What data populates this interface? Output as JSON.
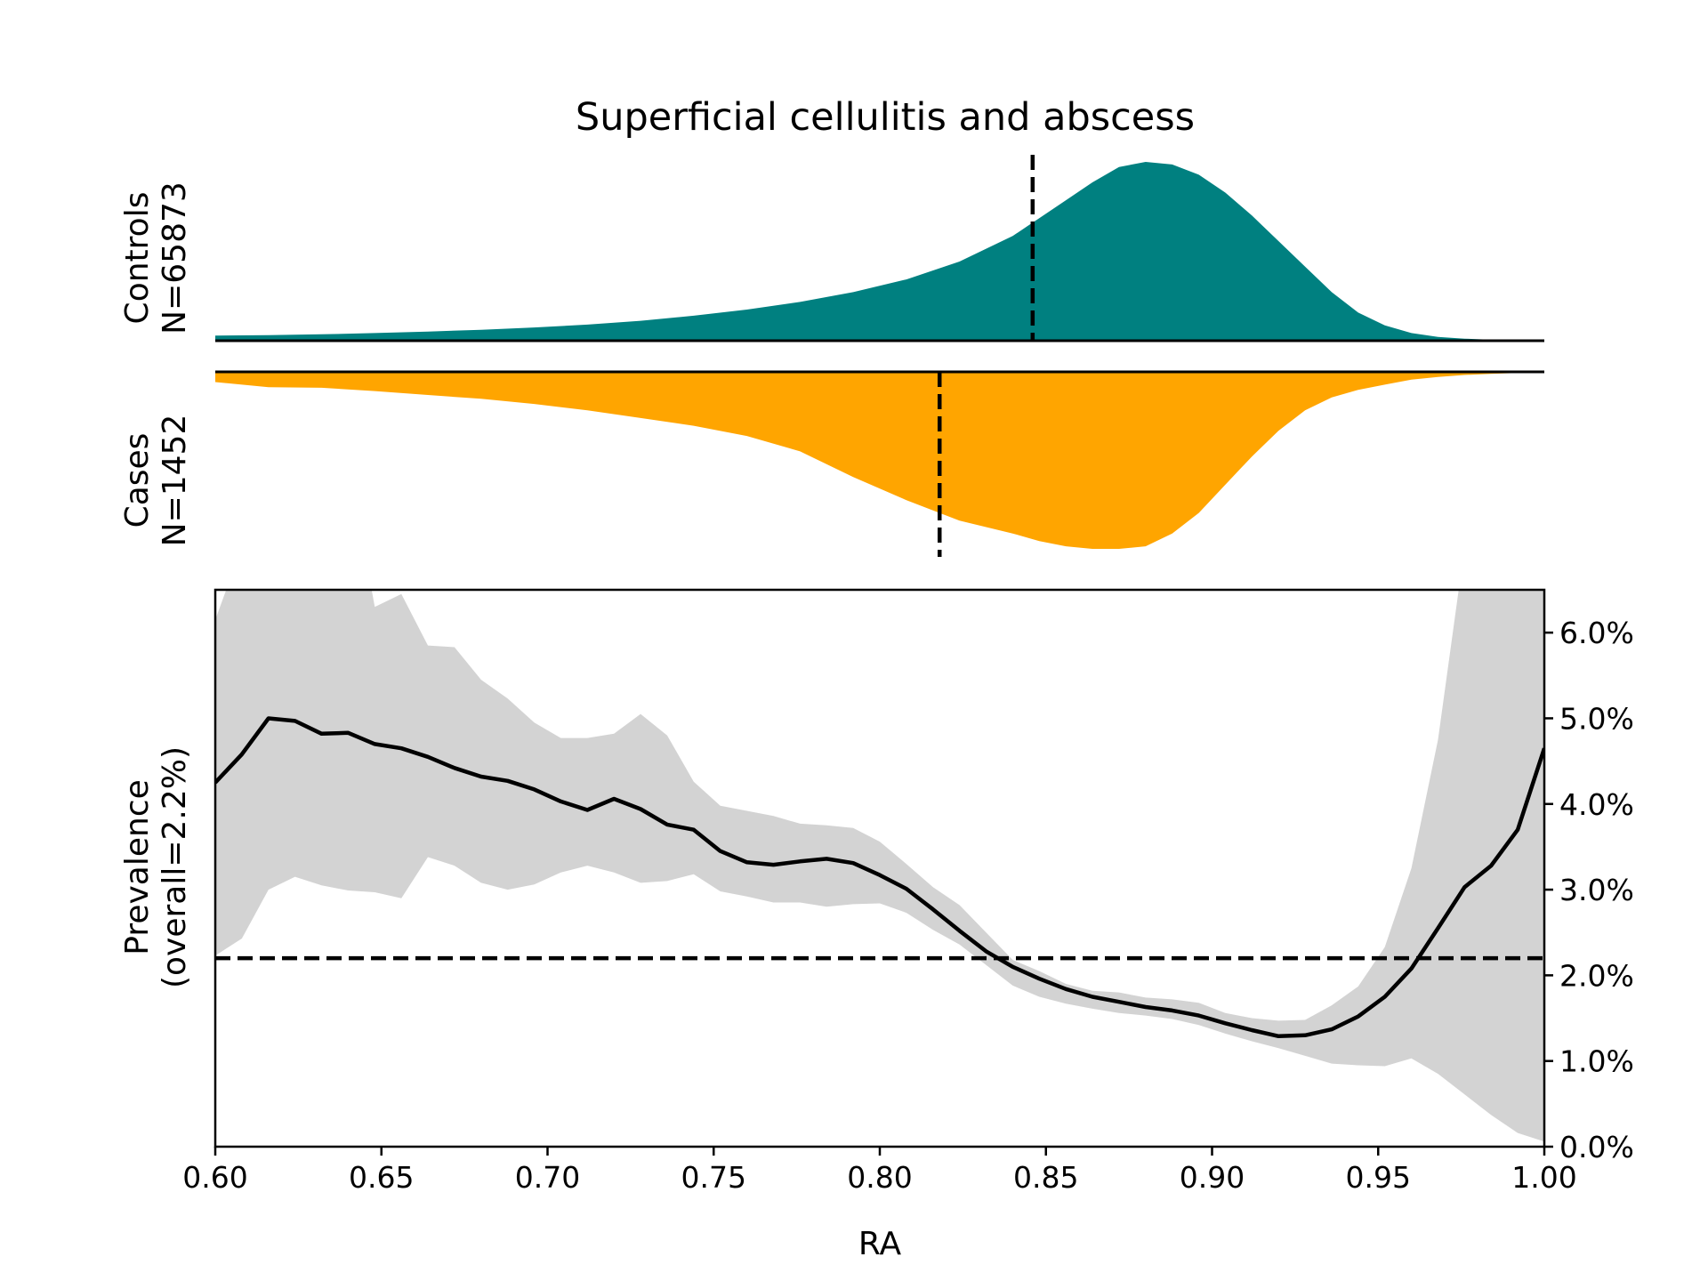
{
  "chart_data": {
    "type": "area",
    "title": "Superficial cellulitis and abscess",
    "x_range": [
      0.6,
      1.0
    ],
    "x_ticks": [
      "0.60",
      "0.65",
      "0.70",
      "0.75",
      "0.80",
      "0.85",
      "0.90",
      "0.95",
      "1.00"
    ],
    "xlabel": "RA",
    "controls": {
      "label_line1": "Controls",
      "label_line2": "N=65873",
      "color": "#008080",
      "median": 0.846,
      "x": [
        0.6,
        0.616,
        0.632,
        0.648,
        0.664,
        0.68,
        0.696,
        0.712,
        0.728,
        0.744,
        0.76,
        0.776,
        0.792,
        0.808,
        0.824,
        0.84,
        0.848,
        0.856,
        0.864,
        0.872,
        0.88,
        0.888,
        0.896,
        0.904,
        0.912,
        0.92,
        0.928,
        0.936,
        0.944,
        0.952,
        0.96,
        0.968,
        0.976,
        0.984,
        0.992,
        1.0
      ],
      "density": [
        0.02,
        0.022,
        0.025,
        0.03,
        0.036,
        0.043,
        0.052,
        0.063,
        0.078,
        0.098,
        0.122,
        0.152,
        0.19,
        0.24,
        0.31,
        0.41,
        0.48,
        0.55,
        0.62,
        0.68,
        0.7,
        0.69,
        0.65,
        0.58,
        0.49,
        0.39,
        0.29,
        0.19,
        0.11,
        0.06,
        0.03,
        0.015,
        0.008,
        0.004,
        0.002,
        0.001
      ]
    },
    "cases": {
      "label_line1": "Cases",
      "label_line2": "N=1452",
      "color": "#FFA500",
      "median": 0.818,
      "x": [
        0.6,
        0.616,
        0.632,
        0.648,
        0.664,
        0.68,
        0.696,
        0.712,
        0.728,
        0.744,
        0.76,
        0.776,
        0.792,
        0.808,
        0.824,
        0.84,
        0.848,
        0.856,
        0.864,
        0.872,
        0.88,
        0.888,
        0.896,
        0.904,
        0.912,
        0.92,
        0.928,
        0.936,
        0.944,
        0.952,
        0.96,
        0.968,
        0.976,
        0.984,
        0.992,
        1.0
      ],
      "density": [
        0.04,
        0.06,
        0.062,
        0.075,
        0.09,
        0.105,
        0.125,
        0.15,
        0.18,
        0.21,
        0.25,
        0.31,
        0.41,
        0.5,
        0.58,
        0.63,
        0.66,
        0.68,
        0.69,
        0.69,
        0.68,
        0.63,
        0.55,
        0.44,
        0.33,
        0.23,
        0.15,
        0.1,
        0.07,
        0.05,
        0.03,
        0.02,
        0.012,
        0.008,
        0.004,
        0.002
      ]
    },
    "prevalence": {
      "ylabel_line1": "Prevalence",
      "ylabel_line2": "(overall=2.2%)",
      "y_range": [
        0.0,
        6.5
      ],
      "y_ticks": [
        "0.0%",
        "1.0%",
        "2.0%",
        "3.0%",
        "4.0%",
        "5.0%",
        "6.0%"
      ],
      "y_tick_values": [
        0,
        1,
        2,
        3,
        4,
        5,
        6
      ],
      "overall": 2.2,
      "band_color": "#D3D3D3",
      "x": [
        0.6,
        0.608,
        0.616,
        0.624,
        0.632,
        0.64,
        0.648,
        0.656,
        0.664,
        0.672,
        0.68,
        0.688,
        0.696,
        0.704,
        0.712,
        0.72,
        0.728,
        0.736,
        0.744,
        0.752,
        0.76,
        0.768,
        0.776,
        0.784,
        0.792,
        0.8,
        0.808,
        0.816,
        0.824,
        0.832,
        0.84,
        0.848,
        0.856,
        0.864,
        0.872,
        0.88,
        0.888,
        0.896,
        0.904,
        0.912,
        0.92,
        0.928,
        0.936,
        0.944,
        0.952,
        0.96,
        0.968,
        0.976,
        0.984,
        0.992,
        1.0
      ],
      "y": [
        4.25,
        4.58,
        5.0,
        4.97,
        4.82,
        4.83,
        4.7,
        4.65,
        4.55,
        4.42,
        4.32,
        4.27,
        4.17,
        4.03,
        3.93,
        4.06,
        3.94,
        3.76,
        3.7,
        3.45,
        3.32,
        3.29,
        3.33,
        3.36,
        3.31,
        3.17,
        3.01,
        2.77,
        2.52,
        2.28,
        2.1,
        1.96,
        1.84,
        1.75,
        1.69,
        1.63,
        1.59,
        1.53,
        1.44,
        1.36,
        1.29,
        1.3,
        1.37,
        1.52,
        1.75,
        2.08,
        2.55,
        3.03,
        3.28,
        3.7,
        4.65
      ],
      "upper": [
        6.15,
        7.0,
        8.0,
        8.0,
        8.0,
        8.0,
        6.3,
        6.45,
        5.85,
        5.83,
        5.45,
        5.23,
        4.95,
        4.77,
        4.77,
        4.82,
        5.05,
        4.8,
        4.26,
        3.98,
        3.92,
        3.86,
        3.77,
        3.75,
        3.72,
        3.56,
        3.3,
        3.03,
        2.82,
        2.5,
        2.18,
        2.05,
        1.9,
        1.82,
        1.8,
        1.74,
        1.72,
        1.68,
        1.56,
        1.5,
        1.47,
        1.48,
        1.65,
        1.87,
        2.33,
        3.25,
        4.75,
        7.0,
        8.0,
        8.0,
        8.0
      ],
      "lower": [
        2.23,
        2.43,
        3.0,
        3.15,
        3.05,
        2.99,
        2.97,
        2.9,
        3.38,
        3.28,
        3.08,
        3.0,
        3.06,
        3.2,
        3.28,
        3.2,
        3.08,
        3.1,
        3.18,
        2.98,
        2.92,
        2.85,
        2.85,
        2.8,
        2.83,
        2.84,
        2.73,
        2.53,
        2.36,
        2.12,
        1.88,
        1.75,
        1.67,
        1.61,
        1.56,
        1.53,
        1.49,
        1.42,
        1.32,
        1.23,
        1.15,
        1.06,
        0.97,
        0.95,
        0.94,
        1.03,
        0.85,
        0.61,
        0.37,
        0.16,
        0.06
      ]
    }
  }
}
